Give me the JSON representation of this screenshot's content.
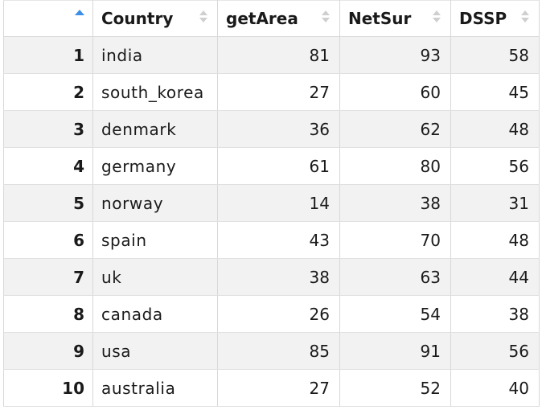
{
  "table": {
    "columns": [
      {
        "label": "",
        "sort": "ascending"
      },
      {
        "label": "Country",
        "sort": "none"
      },
      {
        "label": "getArea",
        "sort": "none"
      },
      {
        "label": "NetSur",
        "sort": "none"
      },
      {
        "label": "DSSP",
        "sort": "none"
      }
    ],
    "rows": [
      {
        "index": "1",
        "country": "india",
        "getArea": "81",
        "NetSur": "93",
        "DSSP": "58"
      },
      {
        "index": "2",
        "country": "south_korea",
        "getArea": "27",
        "NetSur": "60",
        "DSSP": "45"
      },
      {
        "index": "3",
        "country": "denmark",
        "getArea": "36",
        "NetSur": "62",
        "DSSP": "48"
      },
      {
        "index": "4",
        "country": "germany",
        "getArea": "61",
        "NetSur": "80",
        "DSSP": "56"
      },
      {
        "index": "5",
        "country": "norway",
        "getArea": "14",
        "NetSur": "38",
        "DSSP": "31"
      },
      {
        "index": "6",
        "country": "spain",
        "getArea": "43",
        "NetSur": "70",
        "DSSP": "48"
      },
      {
        "index": "7",
        "country": "uk",
        "getArea": "38",
        "NetSur": "63",
        "DSSP": "44"
      },
      {
        "index": "8",
        "country": "canada",
        "getArea": "26",
        "NetSur": "54",
        "DSSP": "38"
      },
      {
        "index": "9",
        "country": "usa",
        "getArea": "85",
        "NetSur": "91",
        "DSSP": "56"
      },
      {
        "index": "10",
        "country": "australia",
        "getArea": "27",
        "NetSur": "52",
        "DSSP": "40"
      }
    ]
  },
  "colors": {
    "sort_active": "#3d8ee6",
    "sort_inactive": "#cfcfcf",
    "row_striped": "#f2f2f2",
    "grid_line": "#d8d8d8"
  }
}
